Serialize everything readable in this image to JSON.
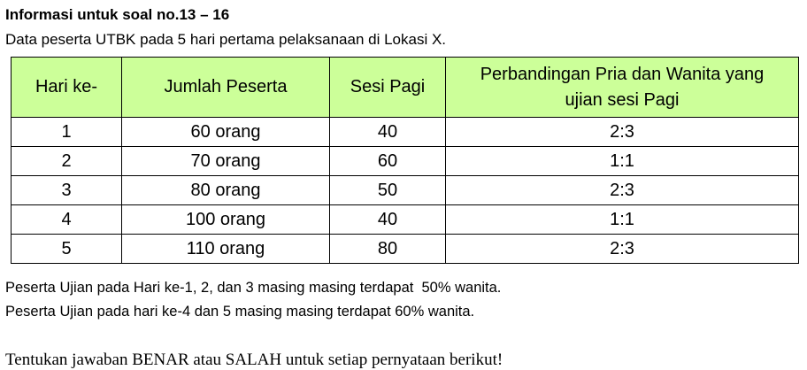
{
  "title": "Informasi untuk soal no.13 – 16",
  "subtitle": "Data peserta UTBK pada 5 hari pertama pelaksanaan di Lokasi X.",
  "table": {
    "header_color": "#ccff99",
    "headers": [
      "Hari ke-",
      "Jumlah Peserta",
      "Sesi Pagi",
      "Perbandingan Pria dan Wanita yang ujian sesi Pagi"
    ],
    "rows": [
      [
        "1",
        "60 orang",
        "40",
        "2:3"
      ],
      [
        "2",
        "70 orang",
        "60",
        "1:1"
      ],
      [
        "3",
        "80 orang",
        "50",
        "2:3"
      ],
      [
        "4",
        "100 orang",
        "40",
        "1:1"
      ],
      [
        "5",
        "110 orang",
        "80",
        "2:3"
      ]
    ]
  },
  "notes": [
    "Peserta Ujian pada Hari ke-1, 2, dan 3 masing masing terdapat  50% wanita.",
    "Peserta Ujian pada hari ke-4 dan 5 masing masing terdapat 60% wanita."
  ],
  "instruction": "Tentukan jawaban BENAR atau SALAH untuk setiap pernyataan berikut!"
}
